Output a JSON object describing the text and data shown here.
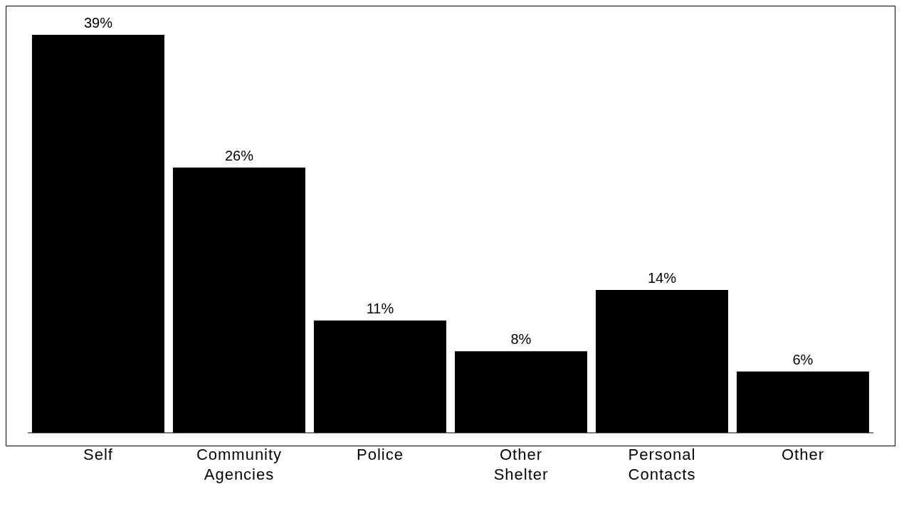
{
  "chart_data": {
    "type": "bar",
    "categories": [
      "Self",
      "Community Agencies",
      "Police",
      "Other Shelter",
      "Personal Contacts",
      "Other"
    ],
    "values": [
      39,
      26,
      11,
      8,
      14,
      6
    ],
    "value_labels": [
      "39%",
      "26%",
      "11%",
      "8%",
      "14%",
      "6%"
    ],
    "color": "#000000"
  }
}
